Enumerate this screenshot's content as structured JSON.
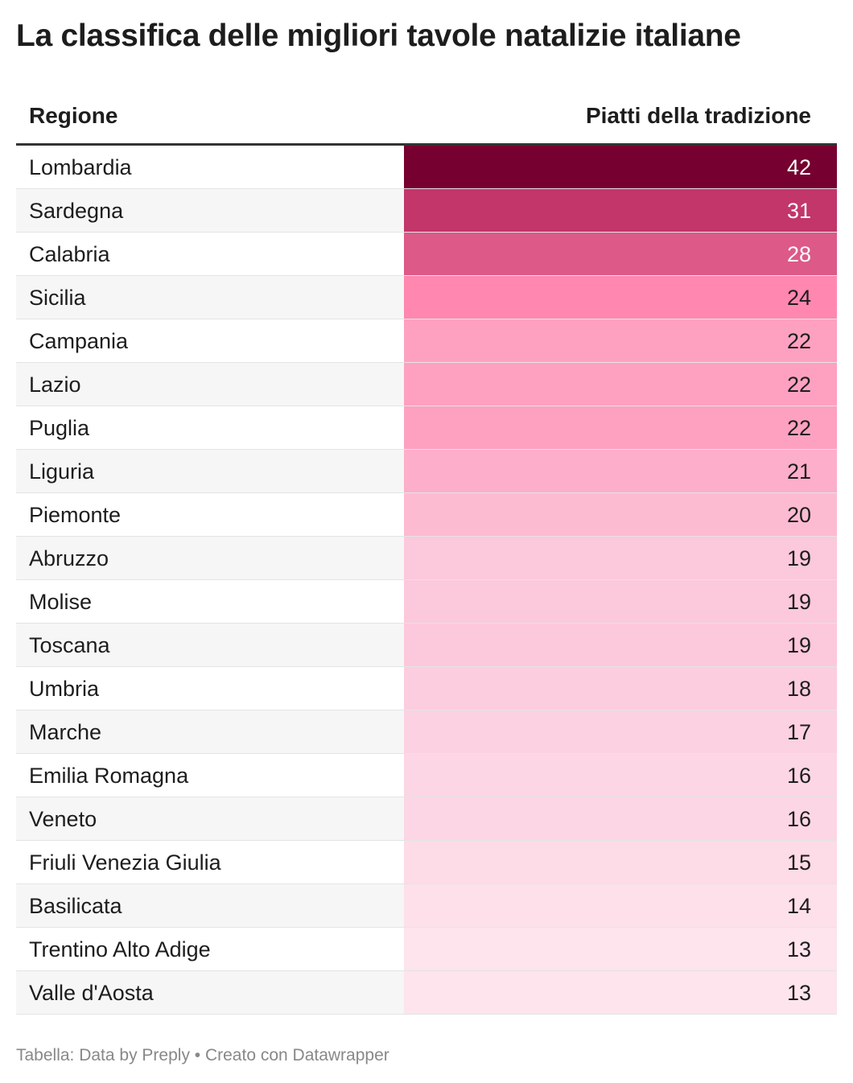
{
  "title": "La classifica delle migliori tavole natalizie italiane",
  "table": {
    "header": {
      "region": "Regione",
      "value": "Piatti della tradizione"
    }
  },
  "chart_data": {
    "type": "table",
    "title": "La classifica delle migliori tavole natalizie italiane",
    "columns": [
      "Regione",
      "Piatti della tradizione"
    ],
    "rows": [
      {
        "region": "Lombardia",
        "value": 42
      },
      {
        "region": "Sardegna",
        "value": 31
      },
      {
        "region": "Calabria",
        "value": 28
      },
      {
        "region": "Sicilia",
        "value": 24
      },
      {
        "region": "Campania",
        "value": 22
      },
      {
        "region": "Lazio",
        "value": 22
      },
      {
        "region": "Puglia",
        "value": 22
      },
      {
        "region": "Liguria",
        "value": 21
      },
      {
        "region": "Piemonte",
        "value": 20
      },
      {
        "region": "Abruzzo",
        "value": 19
      },
      {
        "region": "Molise",
        "value": 19
      },
      {
        "region": "Toscana",
        "value": 19
      },
      {
        "region": "Umbria",
        "value": 18
      },
      {
        "region": "Marche",
        "value": 17
      },
      {
        "region": "Emilia Romagna",
        "value": 16
      },
      {
        "region": "Veneto",
        "value": 16
      },
      {
        "region": "Friuli Venezia Giulia",
        "value": 15
      },
      {
        "region": "Basilicata",
        "value": 14
      },
      {
        "region": "Trentino Alto Adige",
        "value": 13
      },
      {
        "region": "Valle d'Aosta",
        "value": 13
      }
    ],
    "color_scale": {
      "colors": [
        "#fde9f0",
        "#fcc8db",
        "#ff87b0",
        "#b01f56",
        "#760030"
      ]
    }
  },
  "footer": {
    "source": "Tabella: Data by Preply • Creato con Datawrapper"
  }
}
